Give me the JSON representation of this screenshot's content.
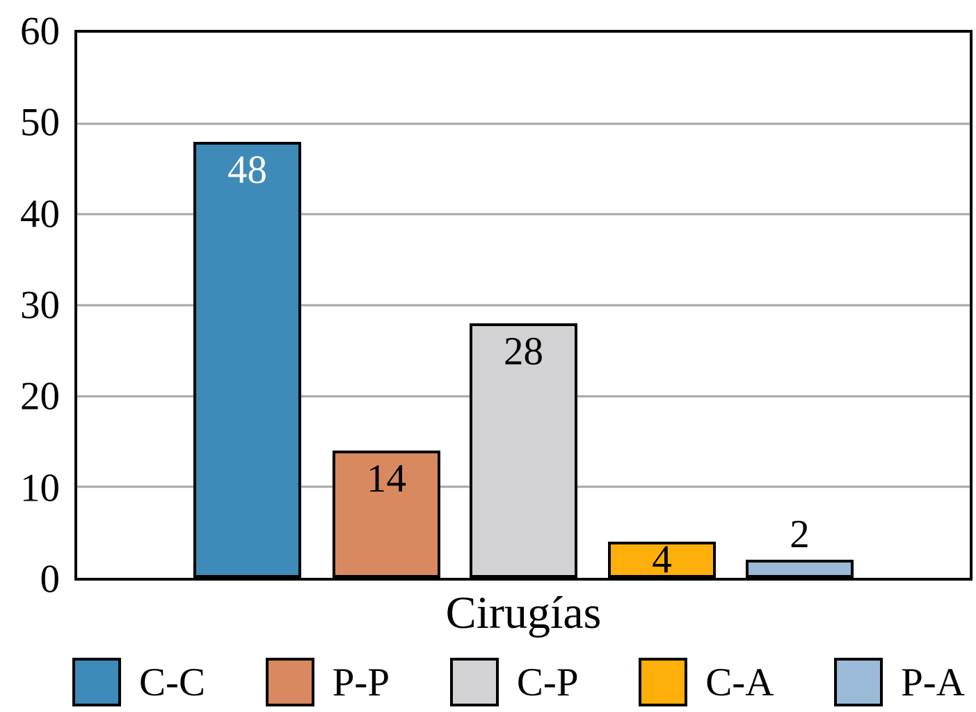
{
  "chart_data": {
    "type": "bar",
    "title": "",
    "xlabel": "Cirugías",
    "ylabel": "",
    "ylim": [
      0,
      60
    ],
    "yticks": [
      "0",
      "10",
      "20",
      "30",
      "40",
      "50",
      "60"
    ],
    "grid": true,
    "gridline_color": "#A6A6AA",
    "axis_color": "#000000",
    "background_color": "#FFFFFF",
    "legend_position": "bottom",
    "categories": [
      "C-C",
      "P-P",
      "C-P",
      "C-A",
      "P-A"
    ],
    "values": [
      48,
      14,
      28,
      4,
      2
    ],
    "value_labels": [
      "48",
      "14",
      "28",
      "4",
      "2"
    ],
    "bar_colors": [
      "#3E8AB8",
      "#D9895F",
      "#D2D2D4",
      "#FFAF0A",
      "#9ABAD8"
    ],
    "value_label_colors": [
      "#FFFFFF",
      "#000000",
      "#000000",
      "#000000",
      "#000000"
    ],
    "value_label_placement": [
      "inside-top",
      "inside-top",
      "inside-top",
      "inside-middle",
      "above"
    ],
    "legend": [
      {
        "label": "C-C",
        "color": "#3E8AB8"
      },
      {
        "label": "P-P",
        "color": "#D9895F"
      },
      {
        "label": "C-P",
        "color": "#D2D2D4"
      },
      {
        "label": "C-A",
        "color": "#FFAF0A"
      },
      {
        "label": "P-A",
        "color": "#9ABAD8"
      }
    ]
  }
}
